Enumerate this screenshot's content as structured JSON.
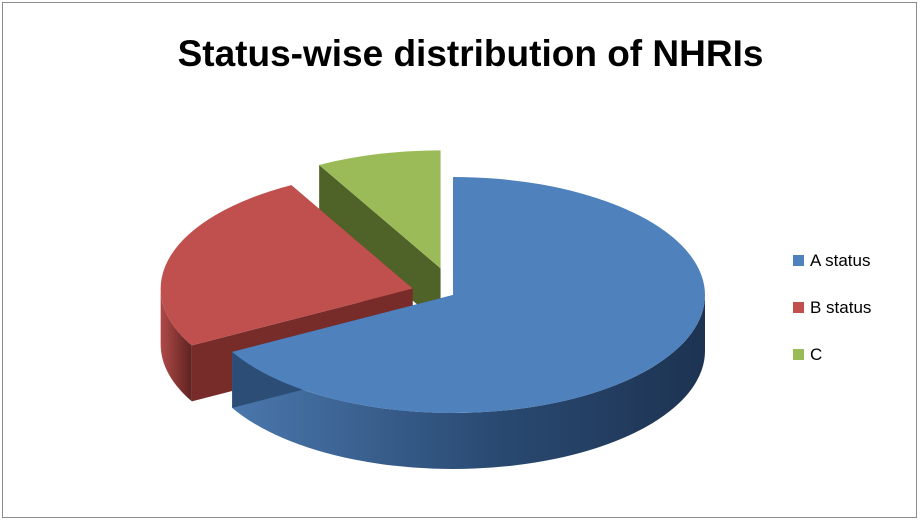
{
  "chart_data": {
    "type": "pie",
    "style": "3d-exploded",
    "title": "Status-wise distribution of NHRIs",
    "categories": [
      "A status",
      "B status",
      "C"
    ],
    "values": [
      67,
      25,
      8
    ],
    "colors": [
      "#4f81bd",
      "#c0504d",
      "#9bbb59"
    ],
    "side_colors": [
      "#2c4d75",
      "#772c2a",
      "#4f6228"
    ],
    "legend_position": "right"
  }
}
